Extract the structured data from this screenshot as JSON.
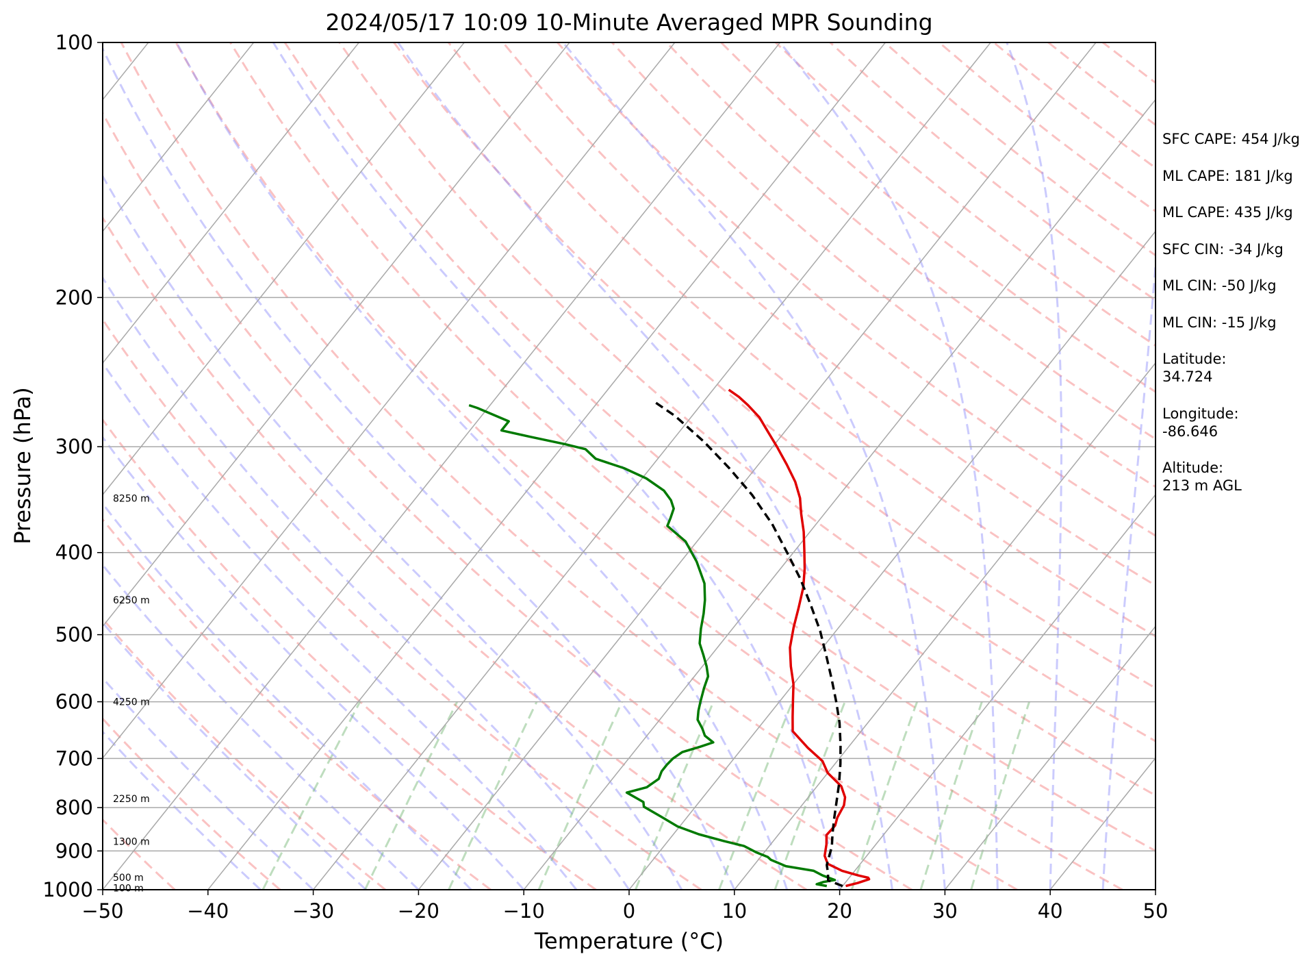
{
  "chart_data": {
    "type": "skew-t",
    "title": "2024/05/17 10:09 10-Minute Averaged MPR Sounding",
    "xlabel": "Temperature (°C)",
    "ylabel": "Pressure (hPa)",
    "xlim": [
      -50,
      50
    ],
    "ylim": [
      1000,
      100
    ],
    "y_scale": "log",
    "x_ticks": [
      "−50",
      "−40",
      "−30",
      "−20",
      "−10",
      "0",
      "10",
      "20",
      "30",
      "40",
      "50"
    ],
    "y_ticks": [
      "100",
      "200",
      "300",
      "400",
      "500",
      "600",
      "700",
      "800",
      "900",
      "1000"
    ],
    "grid": true,
    "series": [
      {
        "color": "#e00000",
        "points": [
          [
            20.3,
            990
          ],
          [
            21.2,
            982
          ],
          [
            22.0,
            972
          ],
          [
            21.8,
            968
          ],
          [
            20.7,
            962
          ],
          [
            18.8,
            950
          ],
          [
            16.9,
            932
          ],
          [
            16.0,
            912
          ],
          [
            15.3,
            884
          ],
          [
            14.6,
            862
          ],
          [
            14.7,
            840
          ],
          [
            14.3,
            822
          ],
          [
            14.0,
            795
          ],
          [
            13.5,
            778
          ],
          [
            12.3,
            755
          ],
          [
            10.0,
            728
          ],
          [
            8.6,
            705
          ],
          [
            6.2,
            680
          ],
          [
            4.6,
            662
          ],
          [
            3.5,
            650
          ],
          [
            2.4,
            625
          ],
          [
            1.2,
            598
          ],
          [
            0.0,
            572
          ],
          [
            -1.6,
            545
          ],
          [
            -3.1,
            518
          ],
          [
            -4.3,
            490
          ],
          [
            -5.3,
            465
          ],
          [
            -6.4,
            440
          ],
          [
            -7.7,
            418
          ],
          [
            -9.1,
            398
          ],
          [
            -10.6,
            378
          ],
          [
            -12.2,
            360
          ],
          [
            -13.5,
            345
          ],
          [
            -15.2,
            330
          ],
          [
            -17.3,
            315
          ],
          [
            -19.6,
            300
          ],
          [
            -21.6,
            288
          ],
          [
            -23.5,
            277
          ],
          [
            -25.5,
            268
          ],
          [
            -27.0,
            262
          ],
          [
            -28.5,
            257
          ]
        ]
      },
      {
        "color": "#007a00",
        "points": [
          [
            18.5,
            990
          ],
          [
            17.4,
            985
          ],
          [
            17.9,
            979
          ],
          [
            18.8,
            974
          ],
          [
            17.3,
            962
          ],
          [
            16.1,
            950
          ],
          [
            13.1,
            938
          ],
          [
            11.2,
            922
          ],
          [
            10.7,
            915
          ],
          [
            9.2,
            903
          ],
          [
            7.6,
            888
          ],
          [
            5.3,
            876
          ],
          [
            2.4,
            860
          ],
          [
            -0.2,
            842
          ],
          [
            -2.5,
            820
          ],
          [
            -4.9,
            798
          ],
          [
            -5.3,
            788
          ],
          [
            -7.6,
            768
          ],
          [
            -6.1,
            757
          ],
          [
            -5.6,
            740
          ],
          [
            -5.9,
            725
          ],
          [
            -5.9,
            712
          ],
          [
            -5.8,
            700
          ],
          [
            -5.4,
            688
          ],
          [
            -4.1,
            678
          ],
          [
            -3.2,
            670
          ],
          [
            -4.5,
            658
          ],
          [
            -5.3,
            645
          ],
          [
            -6.4,
            630
          ],
          [
            -7.0,
            615
          ],
          [
            -7.5,
            600
          ],
          [
            -8.2,
            578
          ],
          [
            -8.7,
            560
          ],
          [
            -9.6,
            545
          ],
          [
            -10.8,
            528
          ],
          [
            -12.0,
            512
          ],
          [
            -13.0,
            492
          ],
          [
            -13.9,
            472
          ],
          [
            -14.8,
            455
          ],
          [
            -16.1,
            435
          ],
          [
            -18.5,
            410
          ],
          [
            -21.1,
            388
          ],
          [
            -24.0,
            372
          ],
          [
            -24.3,
            364
          ],
          [
            -24.7,
            355
          ],
          [
            -25.6,
            347
          ],
          [
            -27.0,
            338
          ],
          [
            -29.6,
            327
          ],
          [
            -32.5,
            318
          ],
          [
            -35.9,
            310
          ],
          [
            -37.6,
            302
          ],
          [
            -39.9,
            298
          ],
          [
            -43.8,
            292
          ],
          [
            -47.0,
            287
          ],
          [
            -47.0,
            280
          ],
          [
            -51.0,
            270
          ],
          [
            -52.0,
            268
          ]
        ]
      },
      {
        "color": "#000000",
        "dashed": true,
        "points": [
          [
            20.0,
            990
          ],
          [
            18.2,
            975
          ],
          [
            17.6,
            955
          ],
          [
            16.9,
            935
          ],
          [
            16.5,
            915
          ],
          [
            16.0,
            890
          ],
          [
            15.1,
            860
          ],
          [
            14.1,
            825
          ],
          [
            13.1,
            790
          ],
          [
            11.9,
            750
          ],
          [
            10.5,
            710
          ],
          [
            9.1,
            675
          ],
          [
            7.3,
            635
          ],
          [
            5.4,
            600
          ],
          [
            3.3,
            565
          ],
          [
            1.0,
            530
          ],
          [
            -1.5,
            495
          ],
          [
            -4.3,
            462
          ],
          [
            -7.3,
            430
          ],
          [
            -10.6,
            400
          ],
          [
            -14.2,
            370
          ],
          [
            -18.3,
            342
          ],
          [
            -22.5,
            318
          ],
          [
            -26.9,
            296
          ],
          [
            -31.6,
            276
          ],
          [
            -34.5,
            266
          ]
        ]
      }
    ],
    "height_labels": [
      {
        "text": "8250 m",
        "p": 345
      },
      {
        "text": "6250 m",
        "p": 455
      },
      {
        "text": "4250 m",
        "p": 600
      },
      {
        "text": "2250 m",
        "p": 781
      },
      {
        "text": "1300 m",
        "p": 877
      },
      {
        "text": "500 m",
        "p": 967
      },
      {
        "text": "100 m",
        "p": 995
      }
    ],
    "annotations": [
      "SFC CAPE: 454 J/kg",
      "ML CAPE: 181 J/kg",
      "ML CAPE: 435 J/kg",
      "SFC CIN: -34 J/kg",
      "ML CIN: -50 J/kg",
      "ML CIN: -15 J/kg",
      "Latitude:",
      "34.724",
      "Longitude:",
      "-86.646",
      "Altitude:",
      "213 m AGL"
    ]
  }
}
